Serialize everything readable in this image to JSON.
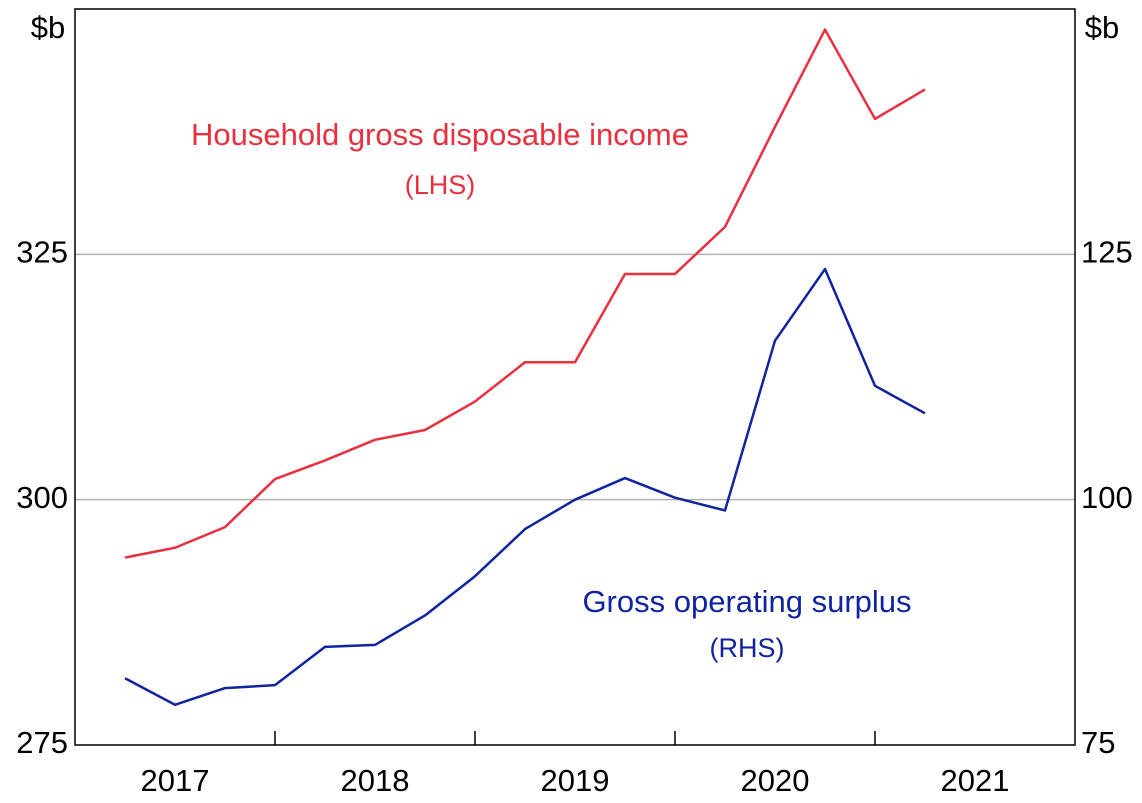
{
  "chart_data": {
    "type": "line",
    "unit_label": "$b",
    "x": [
      2017.25,
      2017.5,
      2017.75,
      2018,
      2018.25,
      2018.5,
      2018.75,
      2019,
      2019.25,
      2019.5,
      2019.75,
      2020,
      2020.25,
      2020.5,
      2020.75,
      2021,
      2021.25
    ],
    "xlim": [
      2017,
      2022
    ],
    "xticks": [
      {
        "value": 2017,
        "label": "2017"
      },
      {
        "value": 2018,
        "label": "2018"
      },
      {
        "value": 2019,
        "label": "2019"
      },
      {
        "value": 2020,
        "label": "2020"
      },
      {
        "value": 2021,
        "label": "2021"
      }
    ],
    "ylim": [
      275,
      350
    ],
    "yticks": [
      275,
      300,
      325
    ],
    "y2lim": [
      75,
      150
    ],
    "y2ticks": [
      75,
      100,
      125
    ],
    "grid": true,
    "series": [
      {
        "name": "Household gross disposable income",
        "axis_note": "(LHS)",
        "color": "#e8303e",
        "values": [
          294.1,
          295.1,
          297.2,
          302.1,
          304.0,
          306.1,
          307.1,
          310.0,
          314.0,
          314.0,
          323.0,
          323.0,
          327.8,
          338.0,
          347.9,
          338.8,
          341.8
        ]
      },
      {
        "name": "Gross operating surplus",
        "axis_note": "(RHS)",
        "color": "#1023a0",
        "axis": "y2",
        "values": [
          81.8,
          79.1,
          80.8,
          81.1,
          85.0,
          85.2,
          88.2,
          92.2,
          97.0,
          100.0,
          102.2,
          100.2,
          98.9,
          116.2,
          123.5,
          111.6,
          108.8
        ]
      }
    ]
  }
}
